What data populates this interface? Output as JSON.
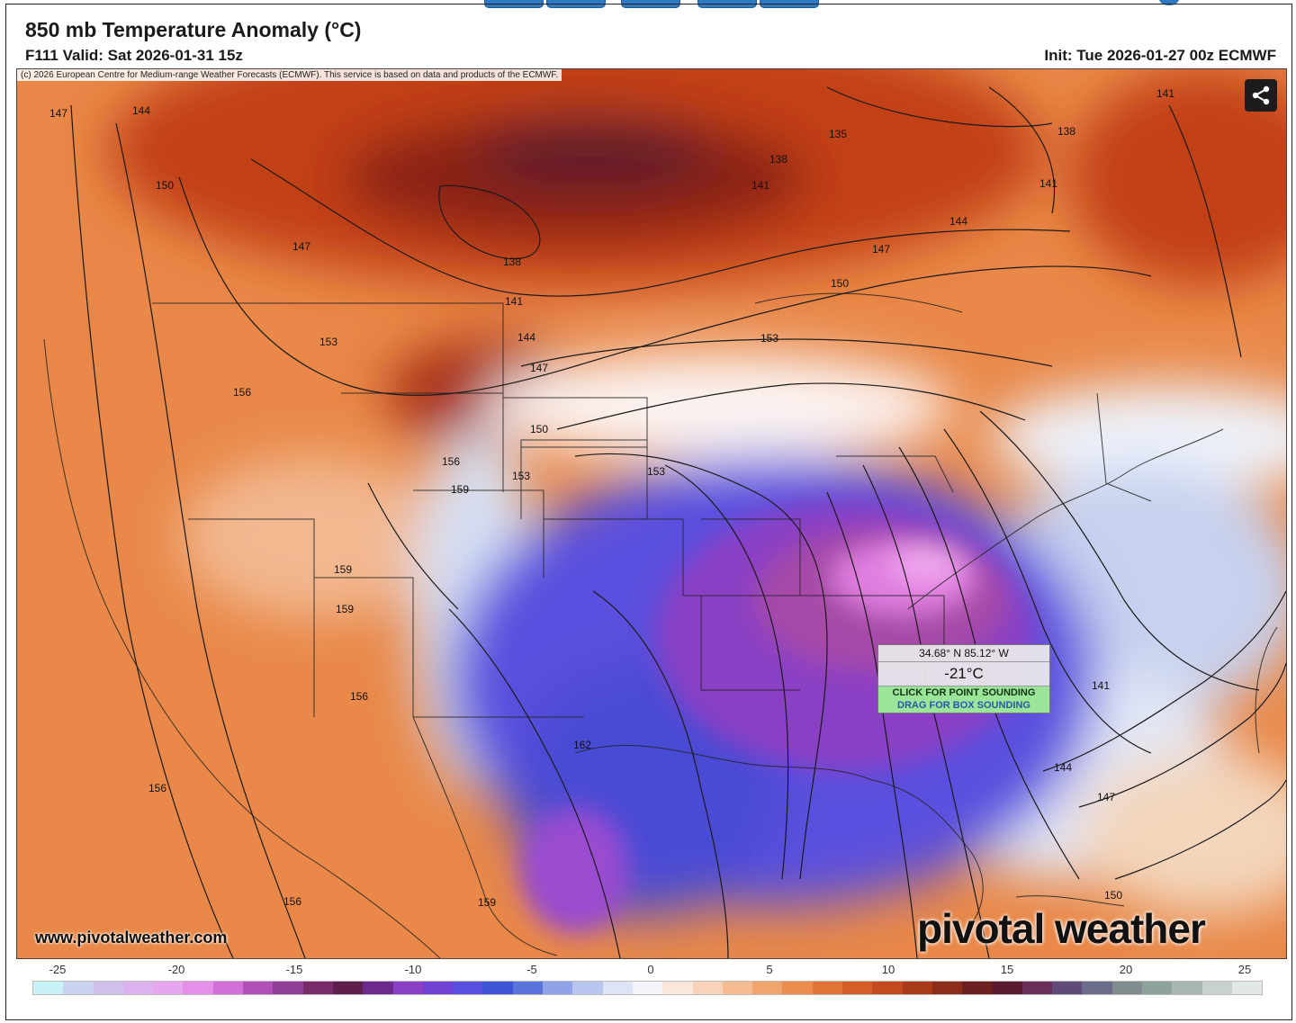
{
  "header": {
    "title": "850 mb Temperature Anomaly (°C)",
    "valid": "F111 Valid: Sat 2026-01-31 15z",
    "init": "Init: Tue 2026-01-27 00z ECMWF"
  },
  "map": {
    "copyright": "(c) 2026 European Centre for Medium-range Weather Forecasts (ECMWF). This service is based on data and products of the ECMWF.",
    "website": "www.pivotalweather.com",
    "brand": "pivotal weather",
    "share_icon": "share-icon",
    "contour_labels": [
      "147",
      "144",
      "150",
      "147",
      "153",
      "156",
      "138",
      "141",
      "144",
      "147",
      "150",
      "153",
      "156",
      "159",
      "159",
      "159",
      "156",
      "156",
      "156",
      "162",
      "159",
      "135",
      "138",
      "141",
      "141",
      "144",
      "147",
      "150",
      "153",
      "138",
      "141",
      "141",
      "144",
      "147",
      "150",
      "153"
    ]
  },
  "popup": {
    "coords": "34.68° N 85.12° W",
    "value": "-21°C",
    "point_button": "CLICK FOR POINT SOUNDING",
    "box_button": "DRAG FOR BOX SOUNDING"
  },
  "colorbar": {
    "ticks": [
      "-25",
      "-20",
      "-15",
      "-10",
      "-5",
      "0",
      "5",
      "10",
      "15",
      "20",
      "25"
    ],
    "colors": [
      "#c9f2f7",
      "#c8d4f1",
      "#cfc0ee",
      "#dcb2ee",
      "#e8a6ee",
      "#e58fe8",
      "#d070d8",
      "#b050b8",
      "#8e3e96",
      "#7a2c6a",
      "#5e1e4e",
      "#6d2a8e",
      "#8a3fc4",
      "#6f42d4",
      "#5a4fde",
      "#3f55d6",
      "#5a74dc",
      "#8fa3e6",
      "#b8c6ef",
      "#dce4f6",
      "#f2f4fa",
      "#fbe8dc",
      "#f8d3b8",
      "#f5bc92",
      "#f1a56e",
      "#ec8d4e",
      "#e27536",
      "#d45e26",
      "#c24a1e",
      "#a83a1a",
      "#8c2c1a",
      "#6e2020",
      "#5a1a30",
      "#6b2f5a",
      "#5f4a7a",
      "#6c6d8a",
      "#7f8d8f",
      "#8ea39c",
      "#a8b8b0",
      "#c6d2cb",
      "#e2e8e4"
    ]
  }
}
